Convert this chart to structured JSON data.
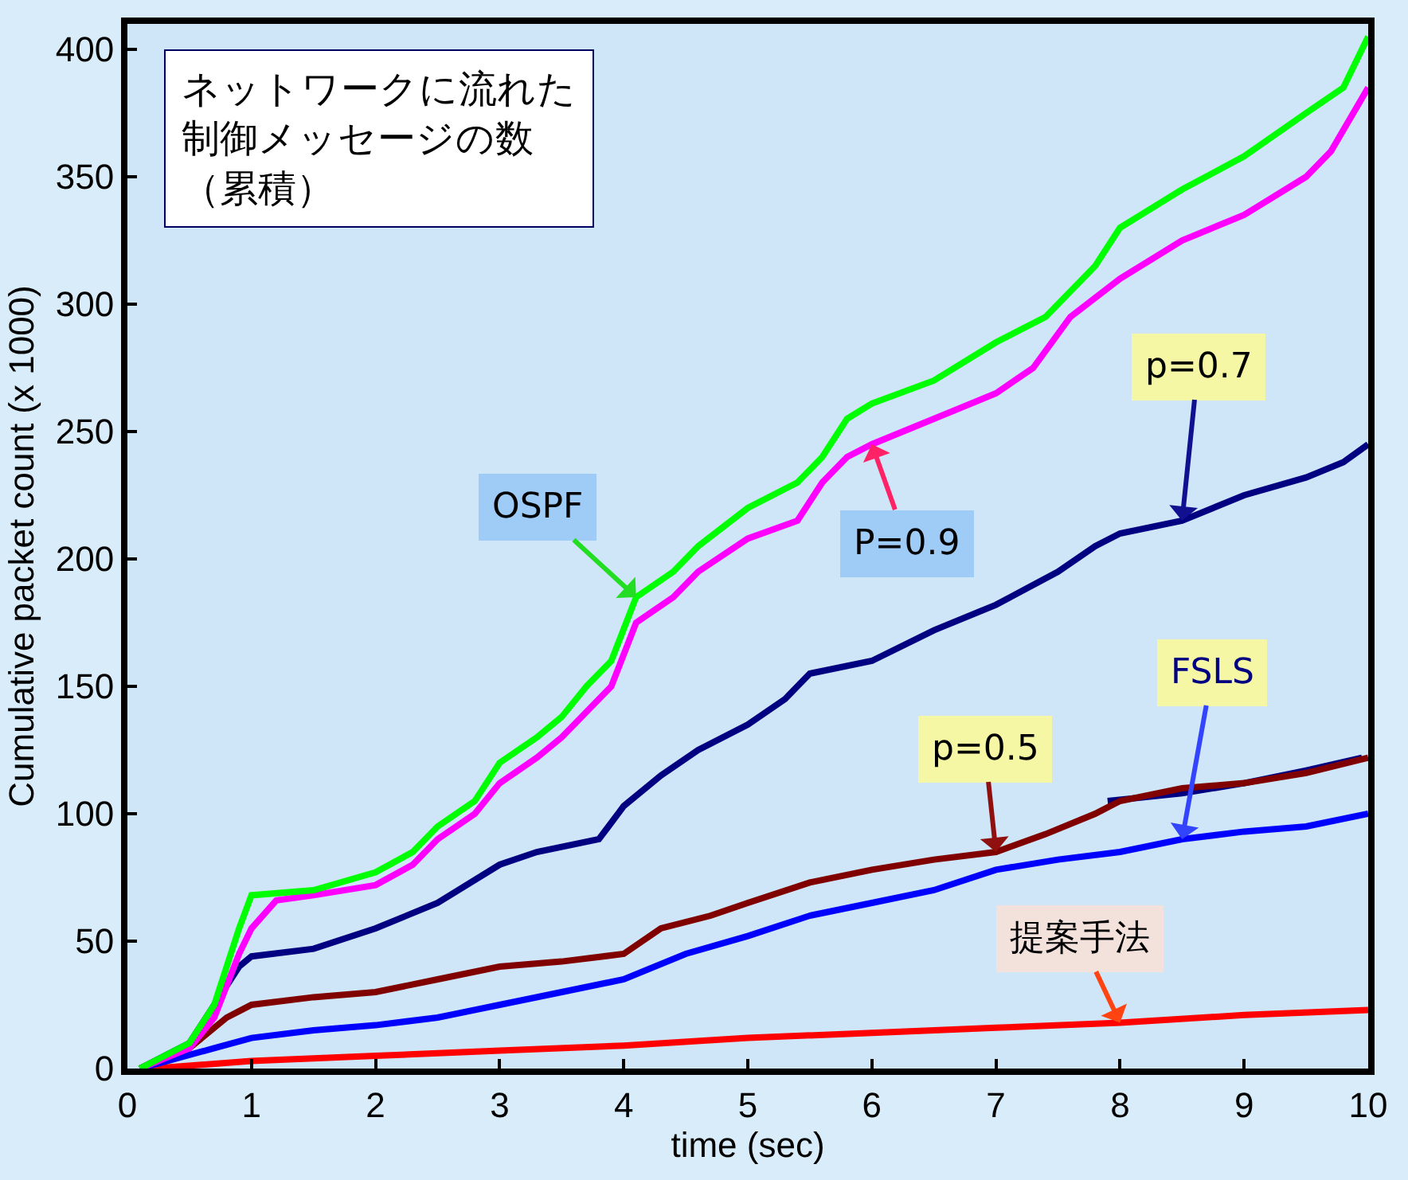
{
  "chart_data": {
    "type": "line",
    "title": "ネットワークに流れた制御メッセージの数（累積）",
    "xlabel": "time (sec)",
    "ylabel": "Cumulative packet count (x 1000)",
    "xlim": [
      0,
      10
    ],
    "xticks": [
      0,
      1,
      2,
      3,
      4,
      5,
      6,
      7,
      8,
      9,
      10
    ],
    "ylim": [
      0,
      410
    ],
    "yticks": [
      0,
      50,
      100,
      150,
      200,
      250,
      300,
      350,
      400
    ],
    "grid": false,
    "marker": "none",
    "line_style": "solid",
    "series": [
      {
        "color": "#00ff00",
        "x": [
          0.1,
          0.3,
          0.5,
          0.7,
          0.8,
          0.9,
          1.0,
          1.5,
          2.0,
          2.3,
          2.5,
          2.8,
          3.0,
          3.3,
          3.5,
          3.7,
          3.9,
          4.1,
          4.4,
          4.6,
          5.0,
          5.4,
          5.6,
          5.8,
          6.0,
          6.5,
          7.0,
          7.4,
          7.8,
          8.0,
          8.5,
          9.0,
          9.5,
          9.8,
          10
        ],
        "values": [
          0,
          5,
          10,
          25,
          40,
          55,
          68,
          70,
          77,
          85,
          95,
          105,
          120,
          130,
          138,
          150,
          160,
          185,
          195,
          205,
          220,
          230,
          240,
          255,
          261,
          270,
          285,
          295,
          315,
          330,
          345,
          358,
          375,
          385,
          405
        ]
      },
      {
        "color": "#ff00ff",
        "x": [
          0.1,
          0.5,
          0.7,
          0.9,
          1.0,
          1.2,
          1.5,
          2.0,
          2.3,
          2.5,
          2.8,
          3.0,
          3.3,
          3.5,
          3.7,
          3.9,
          4.1,
          4.4,
          4.6,
          5.0,
          5.4,
          5.6,
          5.8,
          6.0,
          6.5,
          7.0,
          7.3,
          7.6,
          8.0,
          8.5,
          9.0,
          9.5,
          9.7,
          10
        ],
        "values": [
          0,
          8,
          20,
          45,
          55,
          66,
          68,
          72,
          80,
          90,
          100,
          112,
          122,
          130,
          140,
          150,
          175,
          185,
          195,
          208,
          215,
          230,
          240,
          245,
          255,
          265,
          275,
          295,
          310,
          325,
          335,
          350,
          360,
          385
        ]
      },
      {
        "color": "#000080",
        "x": [
          0.1,
          0.5,
          0.7,
          0.9,
          1.0,
          1.5,
          2.0,
          2.5,
          3.0,
          3.3,
          3.8,
          4.0,
          4.3,
          4.6,
          5.0,
          5.3,
          5.5,
          6.0,
          6.5,
          7.0,
          7.5,
          7.8,
          8.0,
          8.5,
          9.0,
          9.5,
          9.8,
          10
        ],
        "values": [
          0,
          10,
          25,
          40,
          44,
          47,
          55,
          65,
          80,
          85,
          90,
          103,
          115,
          125,
          135,
          145,
          155,
          160,
          172,
          182,
          195,
          205,
          210,
          215,
          225,
          232,
          238,
          245
        ]
      },
      {
        "color": "#800000",
        "x": [
          0.1,
          0.5,
          0.8,
          1.0,
          1.5,
          2.0,
          2.5,
          3.0,
          3.5,
          4.0,
          4.3,
          4.7,
          5.0,
          5.5,
          6.0,
          6.5,
          7.0,
          7.4,
          7.8,
          8.0,
          8.5,
          9.0,
          9.5,
          10
        ],
        "values": [
          0,
          8,
          20,
          25,
          28,
          30,
          35,
          40,
          42,
          45,
          55,
          60,
          65,
          73,
          78,
          82,
          85,
          92,
          100,
          105,
          110,
          112,
          116,
          122
        ]
      },
      {
        "color": "#0000ff",
        "x": [
          0.1,
          0.7,
          1.0,
          1.5,
          2.0,
          2.5,
          3.0,
          3.5,
          4.0,
          4.5,
          5.0,
          5.5,
          6.0,
          6.5,
          7.0,
          7.5,
          8.0,
          8.5,
          9.0,
          9.5,
          10
        ],
        "values": [
          0,
          8,
          12,
          15,
          17,
          20,
          25,
          30,
          35,
          45,
          52,
          60,
          65,
          70,
          78,
          82,
          85,
          90,
          93,
          95,
          100
        ]
      },
      {
        "color": "#ff0000",
        "x": [
          0.2,
          1,
          2,
          3,
          4,
          5,
          6,
          7,
          8,
          9,
          10
        ],
        "values": [
          0,
          3,
          5,
          7,
          9,
          12,
          14,
          16,
          18,
          21,
          23
        ]
      },
      {
        "color": "#000080",
        "x": [
          7.9,
          8.5,
          9.0,
          9.5,
          9.95
        ],
        "values": [
          105,
          108,
          112,
          117,
          122
        ]
      }
    ],
    "annotations": [
      {
        "text": "OSPF",
        "x": 4.1,
        "y": 185
      },
      {
        "text": "P=0.9",
        "x": 6.0,
        "y": 245
      },
      {
        "text": "p=0.7",
        "x": 8.5,
        "y": 215
      },
      {
        "text": "p=0.5",
        "x": 7.0,
        "y": 85
      },
      {
        "text": "FSLS",
        "x": 8.5,
        "y": 90
      },
      {
        "text": "提案手法",
        "x": 8,
        "y": 18
      }
    ]
  }
}
